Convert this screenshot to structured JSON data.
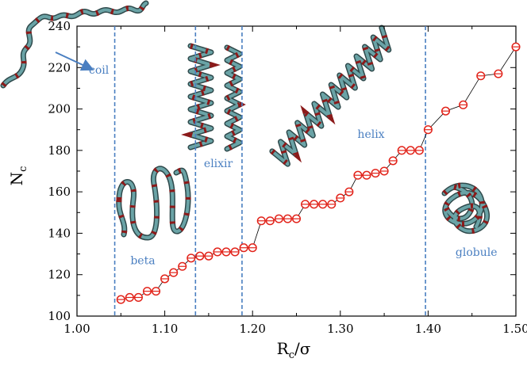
{
  "chart_data": {
    "type": "scatter",
    "xlabel": {
      "main": "R",
      "sub": "c",
      "suffix": "/σ"
    },
    "ylabel": {
      "main": "N",
      "sub": "c"
    },
    "xlim": [
      1.0,
      1.5
    ],
    "ylim": [
      100,
      240
    ],
    "xticks": [
      1.0,
      1.1,
      1.2,
      1.3,
      1.4,
      1.5
    ],
    "xtick_labels": [
      "1.00",
      "1.10",
      "1.20",
      "1.30",
      "1.40",
      "1.50"
    ],
    "yticks": [
      100,
      120,
      140,
      160,
      180,
      200,
      220,
      240
    ],
    "ytick_labels": [
      "100",
      "120",
      "140",
      "160",
      "180",
      "200",
      "220",
      "240"
    ],
    "grid": false,
    "series": [
      {
        "marker": "open-circle",
        "line": "thin-black",
        "color": "#e2231a",
        "x": [
          1.05,
          1.06,
          1.07,
          1.08,
          1.09,
          1.1,
          1.11,
          1.12,
          1.13,
          1.14,
          1.15,
          1.16,
          1.17,
          1.18,
          1.19,
          1.2,
          1.21,
          1.22,
          1.23,
          1.24,
          1.25,
          1.26,
          1.27,
          1.28,
          1.29,
          1.3,
          1.31,
          1.32,
          1.33,
          1.34,
          1.35,
          1.36,
          1.37,
          1.38,
          1.39,
          1.4,
          1.42,
          1.44,
          1.46,
          1.48,
          1.5
        ],
        "y": [
          108,
          109,
          109,
          112,
          112,
          118,
          121,
          124,
          128,
          129,
          129,
          131,
          131,
          131,
          133,
          133,
          146,
          146,
          147,
          147,
          147,
          154,
          154,
          154,
          154,
          157,
          160,
          168,
          168,
          169,
          170,
          175,
          180,
          180,
          180,
          190,
          199,
          202,
          216,
          217,
          230
        ]
      }
    ],
    "phase_boundaries": [
      1.043,
      1.135,
      1.188,
      1.397
    ],
    "boundary_color": "#4a7fc1",
    "annotations": [
      {
        "text": "coil",
        "x": 1.025,
        "y": 217
      },
      {
        "text": "beta",
        "x": 1.075,
        "y": 125
      },
      {
        "text": "elixir",
        "x": 1.161,
        "y": 172
      },
      {
        "text": "helix",
        "x": 1.335,
        "y": 186
      },
      {
        "text": "globule",
        "x": 1.455,
        "y": 129
      }
    ],
    "colors": {
      "tube": "#6aa3a6",
      "tube_shadow": "#2f4a4c",
      "bead": "#8b1a1a",
      "arrow": "#4a7fc1"
    }
  }
}
